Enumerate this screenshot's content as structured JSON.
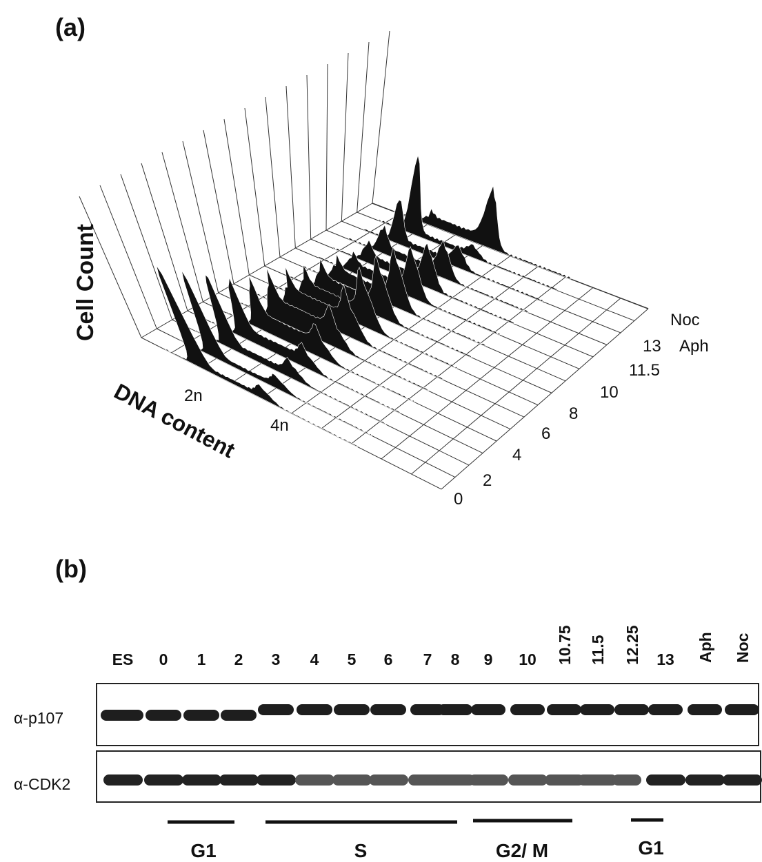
{
  "panel_a": {
    "label": "(a)",
    "y_axis_label": "Cell Count",
    "x_axis_label": "DNA content",
    "dna_ticks": [
      "2n",
      "4n"
    ],
    "time_ticks": [
      "0",
      "2",
      "4",
      "6",
      "8",
      "10",
      "11.5",
      "13",
      "Aph",
      "Noc"
    ]
  },
  "panel_b": {
    "label": "(b)",
    "lanes": [
      "ES",
      "0",
      "1",
      "2",
      "3",
      "4",
      "5",
      "6",
      "7",
      "8",
      "9",
      "10",
      "10.75",
      "11.5",
      "12.25",
      "13",
      "Aph",
      "Noc"
    ],
    "blots": [
      "α-p107",
      "α-CDK2"
    ],
    "phases": [
      "G1",
      "S",
      "G2/ M",
      "G1"
    ]
  }
}
